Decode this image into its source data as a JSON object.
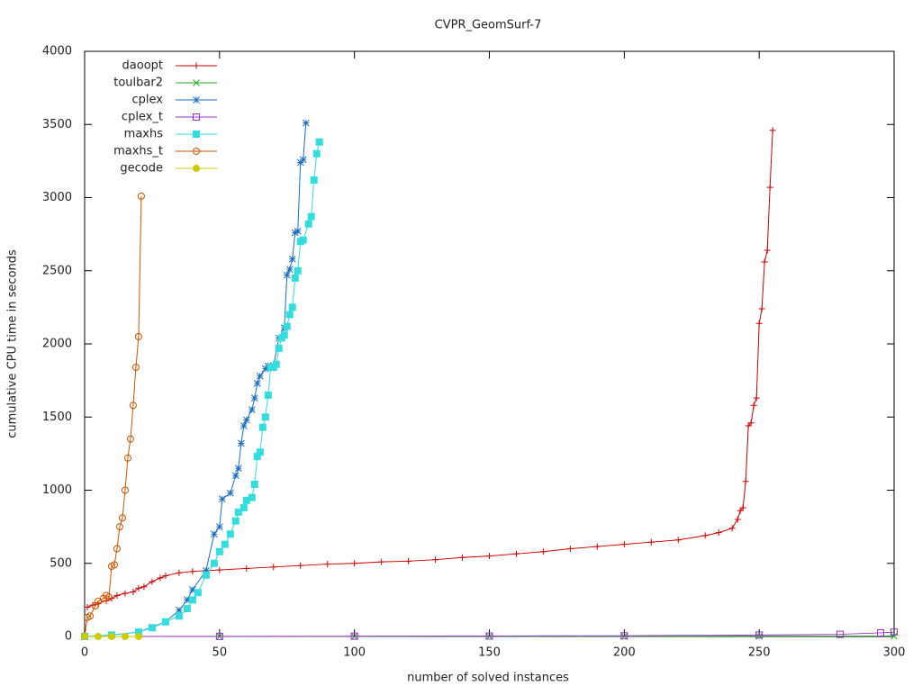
{
  "chart_data": {
    "type": "line",
    "title": "CVPR_GeomSurf-7",
    "x_label": "number of solved instances",
    "y_label": "cumulative CPU time in seconds",
    "xlim": [
      0,
      300
    ],
    "xticks": [
      0,
      50,
      100,
      150,
      200,
      250,
      300
    ],
    "ylim": [
      0,
      4000
    ],
    "yticks": [
      0,
      500,
      1000,
      1500,
      2000,
      2500,
      3000,
      3500,
      4000
    ],
    "grid": false,
    "legend": "top-left",
    "series": [
      {
        "name": "daoopt",
        "color": "#cc0000",
        "marker": "plus",
        "x": [
          1,
          3,
          5,
          8,
          10,
          12,
          15,
          18,
          20,
          22,
          25,
          28,
          30,
          35,
          40,
          45,
          50,
          60,
          70,
          80,
          90,
          100,
          110,
          120,
          130,
          140,
          150,
          160,
          170,
          180,
          190,
          200,
          210,
          220,
          230,
          235,
          240,
          242,
          243,
          244,
          245,
          246,
          247,
          248,
          249,
          250,
          251,
          252,
          253,
          254,
          255
        ],
        "values": [
          200,
          215,
          225,
          245,
          260,
          280,
          295,
          305,
          330,
          340,
          375,
          400,
          415,
          435,
          445,
          450,
          455,
          465,
          475,
          485,
          495,
          500,
          510,
          515,
          525,
          540,
          550,
          565,
          580,
          600,
          615,
          630,
          645,
          660,
          690,
          710,
          740,
          800,
          860,
          880,
          1060,
          1440,
          1460,
          1580,
          1630,
          2140,
          2240,
          2560,
          2640,
          3070,
          3460
        ]
      },
      {
        "name": "toulbar2",
        "color": "#22aa22",
        "marker": "cross",
        "x": [
          0,
          50,
          100,
          150,
          200,
          250,
          300
        ],
        "values": [
          0,
          0,
          0,
          1,
          1,
          2,
          3
        ]
      },
      {
        "name": "cplex",
        "color": "#1a6ebf",
        "marker": "star",
        "x": [
          0,
          10,
          20,
          30,
          35,
          38,
          40,
          45,
          48,
          50,
          51,
          54,
          56,
          57,
          58,
          59,
          60,
          62,
          63,
          64,
          65,
          67,
          68,
          70,
          72,
          74,
          75,
          76,
          77,
          78,
          79,
          80,
          81,
          82
        ],
        "values": [
          0,
          10,
          30,
          100,
          180,
          250,
          320,
          450,
          700,
          750,
          940,
          980,
          1100,
          1150,
          1320,
          1440,
          1480,
          1550,
          1630,
          1730,
          1780,
          1830,
          1850,
          1850,
          2040,
          2110,
          2470,
          2510,
          2580,
          2760,
          2770,
          3240,
          3260,
          3510
        ]
      },
      {
        "name": "cplex_t",
        "color": "#9933cc",
        "marker": "square",
        "x": [
          0,
          50,
          100,
          150,
          200,
          250,
          280,
          295,
          300
        ],
        "values": [
          0,
          1,
          2,
          3,
          5,
          10,
          15,
          25,
          30
        ]
      },
      {
        "name": "maxhs",
        "color": "#33dddd",
        "marker": "filled-square",
        "x": [
          0,
          10,
          20,
          25,
          30,
          35,
          38,
          40,
          42,
          45,
          48,
          50,
          52,
          54,
          56,
          57,
          59,
          60,
          62,
          63,
          64,
          65,
          66,
          67,
          68,
          69,
          70,
          71,
          72,
          73,
          74,
          75,
          76,
          77,
          78,
          79,
          80,
          81,
          83,
          84,
          85,
          86,
          87
        ],
        "values": [
          0,
          10,
          30,
          60,
          100,
          140,
          190,
          250,
          300,
          420,
          500,
          580,
          630,
          700,
          790,
          850,
          880,
          930,
          950,
          1040,
          1230,
          1260,
          1430,
          1500,
          1650,
          1840,
          1840,
          1860,
          1970,
          2040,
          2060,
          2120,
          2200,
          2250,
          2450,
          2500,
          2700,
          2710,
          2820,
          2870,
          3120,
          3300,
          3380
        ]
      },
      {
        "name": "maxhs_t",
        "color": "#cc5500",
        "marker": "circle",
        "x": [
          0,
          1,
          2,
          4,
          5,
          7,
          8,
          9,
          10,
          11,
          12,
          13,
          14,
          15,
          16,
          17,
          18,
          19,
          20,
          21
        ],
        "values": [
          0,
          130,
          140,
          210,
          240,
          260,
          280,
          270,
          480,
          490,
          600,
          750,
          810,
          1000,
          1220,
          1350,
          1580,
          1840,
          2050,
          3010
        ]
      },
      {
        "name": "gecode",
        "color": "#cccc00",
        "marker": "filled-circle",
        "x": [
          0,
          5,
          10,
          15,
          20
        ],
        "values": [
          0,
          0,
          0,
          0,
          0
        ]
      }
    ]
  }
}
